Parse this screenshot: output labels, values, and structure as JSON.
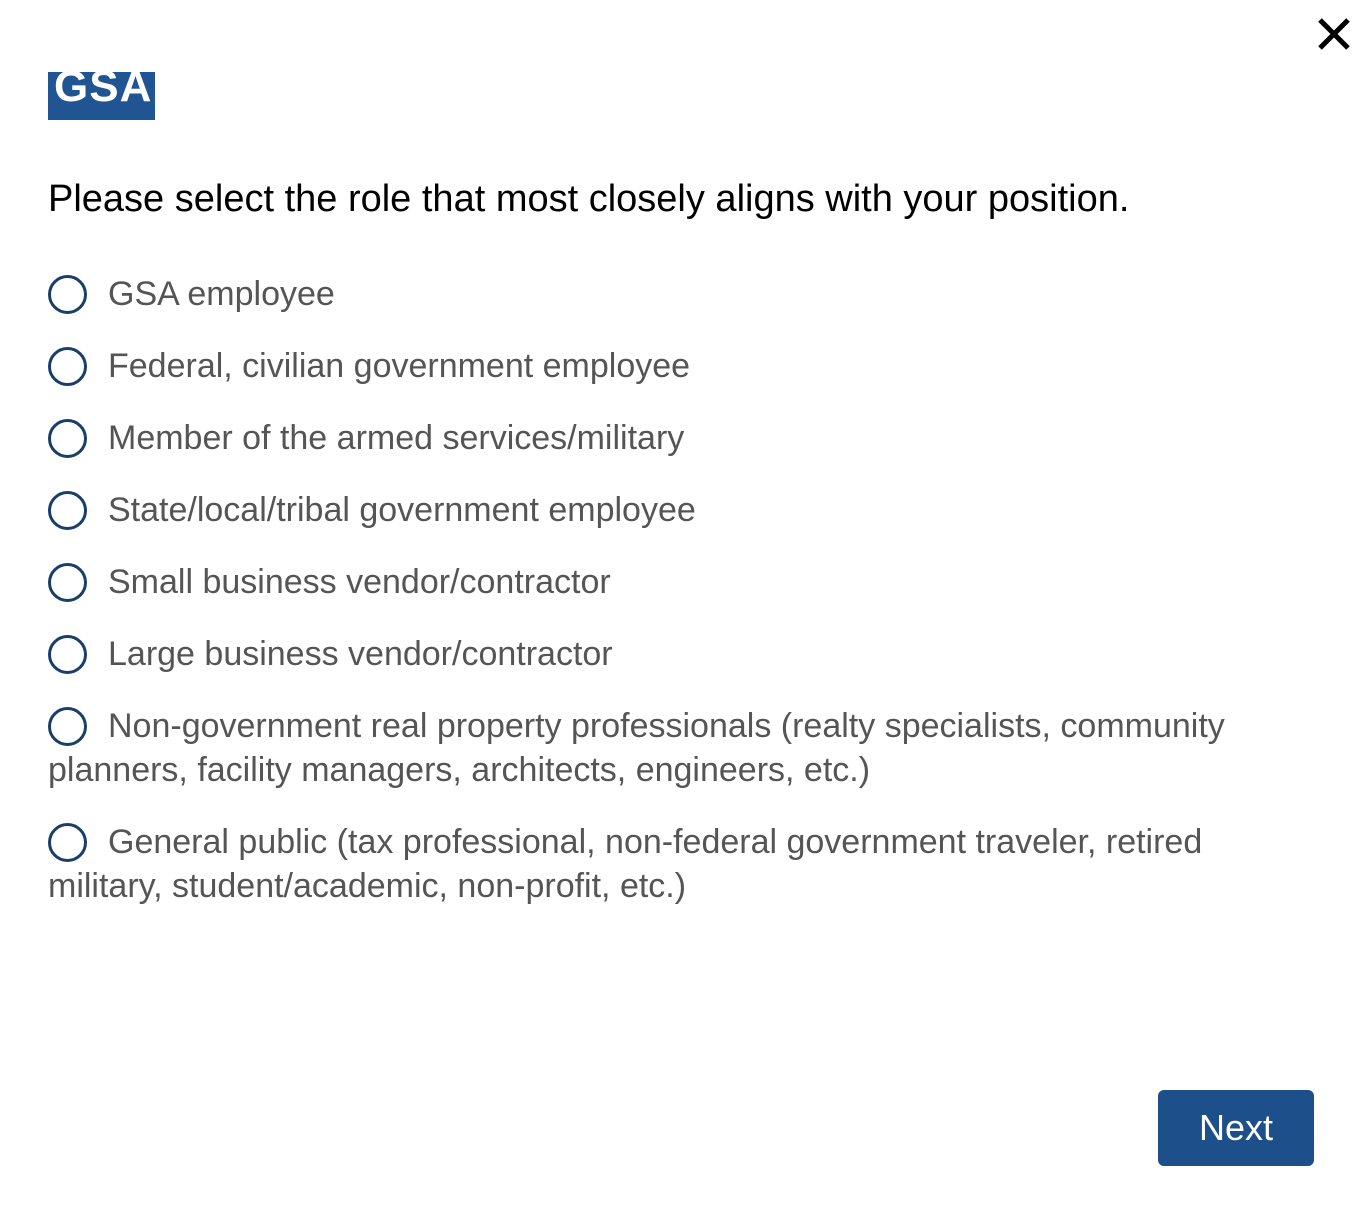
{
  "logo": {
    "text": "GSA",
    "color": "#205493"
  },
  "heading": "Please select the role that most closely aligns with your position.",
  "options": [
    "GSA employee",
    "Federal, civilian government employee",
    "Member of the armed services/military",
    "State/local/tribal government employee",
    "Small business vendor/contractor",
    "Large business vendor/contractor",
    "Non-government real property professionals (realty specialists, community planners, facility managers, architects, engineers, etc.)",
    "General public (tax professional, non-federal government traveler, retired military, student/academic, non-profit, etc.)"
  ],
  "next_label": "Next",
  "accent": "#1d4f8a",
  "close_icon": "close-icon"
}
